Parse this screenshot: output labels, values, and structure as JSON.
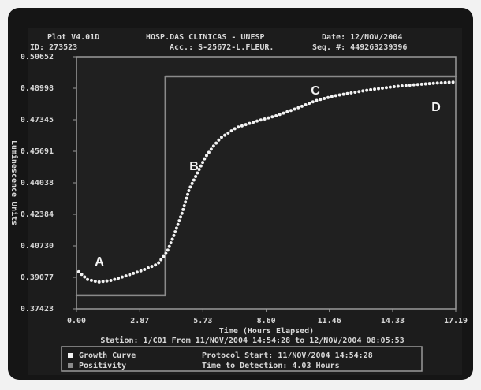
{
  "chart_data": {
    "type": "line",
    "header": [
      "Plot V4.01D",
      "HOSP.DAS CLINICAS - UNESP",
      "Date: 12/NOV/2004",
      "ID: 273523",
      "Acc.: S-25672-L.FLEUR.",
      "Seq. #: 449263239396"
    ],
    "x_label": "Time (Hours Elapsed)",
    "y_label": "Luminescence Units",
    "station": "Station: 1/C01 From 11/NOV/2004 14:54:28 to 12/NOV/2004 08:05:53",
    "protocol_start": "Protocol Start: 11/NOV/2004 14:54:28",
    "time_to_detection": "Time to Detection: 4.03 Hours",
    "annotations": [
      "A",
      "B",
      "C",
      "D"
    ],
    "xlim": [
      0,
      17.19
    ],
    "xticks": [
      {
        "value": 0,
        "label": "0.00"
      },
      2.87,
      5.73,
      {
        "value": 8.6,
        "label": "8.60"
      },
      11.46,
      14.33,
      17.19
    ],
    "ylim": [
      0.37423,
      0.50652
    ],
    "yticks": [
      0.37423,
      0.39077,
      {
        "value": 0.4073,
        "label": "0.40730"
      },
      0.42384,
      0.44038,
      0.45691,
      0.47345,
      0.48998,
      0.50652
    ],
    "series": [
      {
        "name": "Growth Curve",
        "color": "#f4f4f4",
        "x": [
          0.1,
          0.5,
          1.0,
          1.6,
          2.25,
          3.0,
          3.68,
          4.1,
          4.4,
          4.8,
          5.11,
          5.5,
          5.83,
          6.2,
          6.54,
          7.25,
          8.1,
          9.04,
          10.0,
          10.83,
          11.7,
          12.62,
          13.5,
          14.4,
          15.3,
          16.2,
          17.19
        ],
        "values": [
          0.3937,
          0.3896,
          0.3883,
          0.3892,
          0.3916,
          0.3945,
          0.3978,
          0.404,
          0.4123,
          0.425,
          0.437,
          0.446,
          0.4536,
          0.4595,
          0.464,
          0.4693,
          0.4725,
          0.4755,
          0.4795,
          0.4834,
          0.486,
          0.4879,
          0.4895,
          0.4908,
          0.4918,
          0.4926,
          0.4933
        ]
      },
      {
        "name": "Positivity",
        "color": "#8a8a8a",
        "x": [
          0,
          4.03,
          4.03,
          17.19
        ],
        "values": [
          0.3813,
          0.3813,
          0.4962,
          0.4962
        ]
      }
    ]
  }
}
